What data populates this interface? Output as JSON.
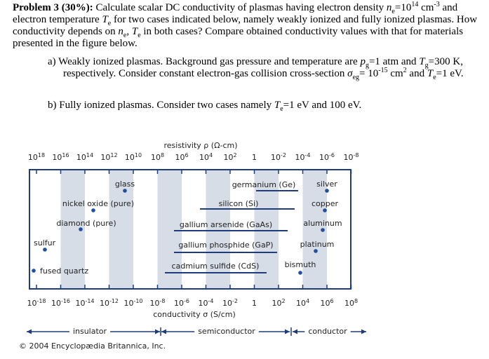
{
  "problem": {
    "label": "Problem 3 (30%):",
    "intro": [
      "Calculate scalar DC conductivity of plasmas having electron density",
      "n",
      "e",
      "=10",
      "14",
      "cm",
      "-3",
      "and electron temperature",
      "T",
      "e",
      "for two cases indicated below, namely weakly ionized and fully ionized plasmas. How conductivity depends on",
      "n",
      "e",
      ",",
      "T",
      "e",
      "in both cases? Compare obtained conductivity values with that for materials presented in the figure below."
    ],
    "item_a": [
      "a) Weakly ionized plasmas. Background gas pressure and temperature are",
      "p",
      "g",
      "=1 atm and",
      "T",
      "g",
      "=300 K, respectively. Consider constant electron-gas collision cross-section",
      "σ",
      "eg",
      "= 10",
      "-15",
      "cm",
      "2",
      "and",
      "T",
      "e",
      "=1 eV."
    ],
    "item_b": [
      "b) Fully ionized plasmas. Consider two cases namely",
      "T",
      "e",
      "=1 eV and 100 eV."
    ]
  },
  "figure": {
    "top_title": "resistivity ρ (Ω-cm)",
    "top_ticks": [
      [
        "10",
        "18"
      ],
      [
        "10",
        "16"
      ],
      [
        "10",
        "14"
      ],
      [
        "10",
        "12"
      ],
      [
        "10",
        "10"
      ],
      [
        "10",
        "8"
      ],
      [
        "10",
        "6"
      ],
      [
        "10",
        "4"
      ],
      [
        "10",
        "2"
      ],
      [
        "1"
      ],
      [
        "10",
        "-2"
      ],
      [
        "10",
        "-4"
      ],
      [
        "10",
        "-6"
      ],
      [
        "10",
        "-8"
      ]
    ],
    "bottom_title": "conductivity σ (S/cm)",
    "bottom_ticks": [
      [
        "10",
        "-18"
      ],
      [
        "10",
        "-16"
      ],
      [
        "10",
        "-14"
      ],
      [
        "10",
        "-12"
      ],
      [
        "10",
        "-10"
      ],
      [
        "10",
        "-8"
      ],
      [
        "10",
        "-6"
      ],
      [
        "10",
        "-4"
      ],
      [
        "10",
        "-2"
      ],
      [
        "1"
      ],
      [
        "10",
        "2"
      ],
      [
        "10",
        "4"
      ],
      [
        "10",
        "6"
      ],
      [
        "10",
        "8"
      ]
    ],
    "materials": [
      "glass",
      "nickel oxide (pure)",
      "diamond (pure)",
      "sulfur",
      "fused quartz",
      "germanium (Ge)",
      "silicon (Si)",
      "gallium arsenide (GaAs)",
      "gallium phosphide (GaP)",
      "cadmium sulfide (CdS)",
      "silver",
      "copper",
      "aluminum",
      "platinum",
      "bismuth"
    ],
    "regions": [
      "insulator",
      "semiconductor",
      "conductor"
    ],
    "credit": "© 2004 Encyclopædia Britannica, Inc."
  }
}
